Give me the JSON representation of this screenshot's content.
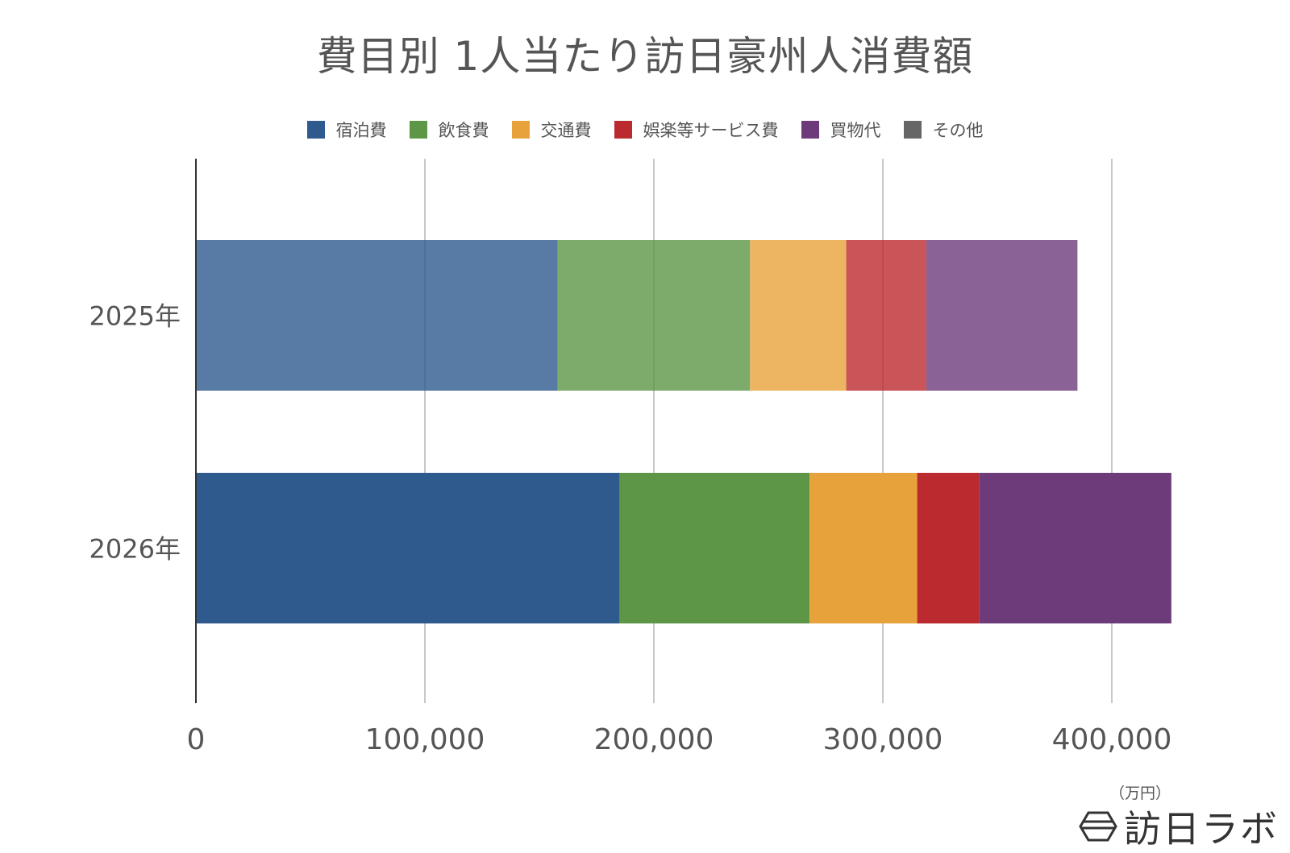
{
  "chart_data": {
    "type": "bar",
    "orientation": "horizontal",
    "stacked": true,
    "title": "費目別 1人当たり訪日豪州人消費額",
    "unit_note": "（万円）",
    "categories": [
      "2025年",
      "2026年"
    ],
    "series": [
      {
        "name": "宿泊費",
        "color": "#2E5A8E",
        "values": [
          158000,
          185000
        ]
      },
      {
        "name": "飲食費",
        "color": "#5D9646",
        "values": [
          84000,
          83000
        ]
      },
      {
        "name": "交通費",
        "color": "#E8A23B",
        "values": [
          42000,
          47000
        ]
      },
      {
        "name": "娯楽等サービス費",
        "color": "#BB2A2F",
        "values": [
          35000,
          27000
        ]
      },
      {
        "name": "買物代",
        "color": "#6E3B7A",
        "values": [
          66000,
          84000
        ]
      },
      {
        "name": "その他",
        "color": "#666666",
        "values": [
          0,
          0
        ]
      }
    ],
    "xlim": [
      0,
      400000
    ],
    "xticks": [
      0,
      100000,
      200000,
      300000,
      400000
    ],
    "xtick_labels": [
      "0",
      "100,000",
      "200,000",
      "300,000",
      "400,000"
    ],
    "faded_categories": [
      "2025年"
    ],
    "grid": true,
    "legend_position": "top"
  },
  "brand": {
    "name": "訪日ラボ",
    "icon": "hexagon-logo-icon"
  }
}
